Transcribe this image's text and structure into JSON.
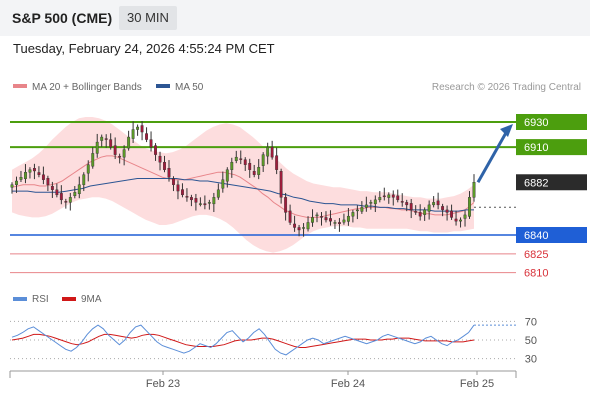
{
  "header": {
    "title": "S&P 500 (CME)",
    "timeframe": "30 MIN",
    "timestamp": "Tuesday, February 24, 2026 4:55:24 PM CET"
  },
  "legend": {
    "ma20": "MA 20 + Bollinger Bands",
    "ma50": "MA 50",
    "credit": "Research © 2026 Trading Central"
  },
  "rsi_legend": {
    "rsi": "RSI",
    "ma": "9MA"
  },
  "colors": {
    "green": "#4c9e0e",
    "blue": "#1f5fd6",
    "red": "#e8858a",
    "dark": "#2b2b2b",
    "candle_up": "#5c9a28",
    "candle_down": "#a01c3c",
    "bollinger": "#fdd7d8",
    "ma50": "#2c5593",
    "rsi": "#5b8ed8",
    "rsi_ma": "#d01818",
    "arrow": "#2f63a8"
  },
  "chart_data": [
    {
      "type": "candlestick",
      "ylim": [
        6800,
        6950
      ],
      "x_ticks": [
        "Feb 23",
        "Feb 24",
        "Feb 25"
      ],
      "last_price": 6882,
      "levels": [
        {
          "value": 6930,
          "label": "6930",
          "role": "resistance"
        },
        {
          "value": 6910,
          "label": "6910",
          "role": "resistance"
        },
        {
          "value": 6882,
          "label": "6882",
          "role": "last"
        },
        {
          "value": 6840,
          "label": "6840",
          "role": "support"
        },
        {
          "value": 6825,
          "label": "6825",
          "role": "support"
        },
        {
          "value": 6810,
          "label": "6810",
          "role": "support"
        }
      ],
      "close": [
        6880,
        6883,
        6886,
        6890,
        6892,
        6891,
        6888,
        6884,
        6880,
        6876,
        6872,
        6868,
        6866,
        6870,
        6874,
        6880,
        6888,
        6896,
        6905,
        6914,
        6918,
        6916,
        6910,
        6904,
        6902,
        6908,
        6918,
        6924,
        6926,
        6922,
        6916,
        6910,
        6904,
        6898,
        6892,
        6886,
        6880,
        6875,
        6872,
        6870,
        6868,
        6866,
        6865,
        6864,
        6866,
        6870,
        6876,
        6884,
        6892,
        6898,
        6902,
        6900,
        6896,
        6892,
        6888,
        6894,
        6904,
        6910,
        6902,
        6892,
        6870,
        6858,
        6850,
        6846,
        6844,
        6846,
        6850,
        6854,
        6856,
        6854,
        6852,
        6851,
        6850,
        6849,
        6852,
        6855,
        6858,
        6860,
        6862,
        6864,
        6866,
        6868,
        6870,
        6871,
        6872,
        6870,
        6868,
        6866,
        6864,
        6860,
        6858,
        6855,
        6860,
        6864,
        6866,
        6864,
        6860,
        6858,
        6854,
        6851,
        6852,
        6856,
        6870,
        6882
      ],
      "ma20": [
        6878,
        6879,
        6880,
        6880,
        6880,
        6879,
        6879,
        6880,
        6881,
        6883,
        6886,
        6889,
        6892,
        6895,
        6898,
        6900,
        6902,
        6903,
        6903,
        6902,
        6900,
        6898,
        6896,
        6894,
        6892,
        6890,
        6888,
        6886,
        6885,
        6884,
        6884,
        6884,
        6885,
        6886,
        6887,
        6888,
        6889,
        6890,
        6890,
        6889,
        6888,
        6886,
        6883,
        6880,
        6877,
        6873,
        6870,
        6866,
        6863,
        6860,
        6858,
        6856,
        6855,
        6854,
        6854,
        6854,
        6855,
        6856,
        6857,
        6858,
        6859,
        6860,
        6861,
        6861,
        6862,
        6862,
        6862,
        6862,
        6861,
        6861,
        6860,
        6860,
        6859,
        6858,
        6857,
        6857,
        6856,
        6856,
        6856,
        6857,
        6858,
        6859,
        6862,
        6866
      ],
      "bb_upper": [
        6892,
        6895,
        6898,
        6901,
        6905,
        6910,
        6916,
        6921,
        6926,
        6930,
        6933,
        6934,
        6934,
        6933,
        6931,
        6928,
        6924,
        6920,
        6916,
        6912,
        6909,
        6907,
        6906,
        6905,
        6906,
        6908,
        6911,
        6915,
        6919,
        6923,
        6926,
        6928,
        6929,
        6928,
        6926,
        6922,
        6918,
        6913,
        6908,
        6903,
        6898,
        6893,
        6889,
        6886,
        6883,
        6881,
        6880,
        6879,
        6878,
        6878,
        6877,
        6876,
        6875,
        6875,
        6874,
        6874,
        6874,
        6873,
        6872,
        6871,
        6870,
        6870,
        6869,
        6869,
        6869,
        6870,
        6871,
        6873,
        6876,
        6880
      ],
      "bb_lower": [
        6858,
        6856,
        6855,
        6854,
        6854,
        6855,
        6857,
        6860,
        6863,
        6866,
        6868,
        6869,
        6870,
        6870,
        6869,
        6867,
        6864,
        6861,
        6858,
        6855,
        6852,
        6850,
        6848,
        6848,
        6849,
        6851,
        6853,
        6855,
        6856,
        6856,
        6855,
        6853,
        6850,
        6846,
        6841,
        6836,
        6832,
        6829,
        6827,
        6826,
        6827,
        6829,
        6832,
        6836,
        6840,
        6843,
        6845,
        6846,
        6847,
        6847,
        6847,
        6846,
        6846,
        6845,
        6845,
        6845,
        6845,
        6845,
        6845,
        6845,
        6844,
        6843,
        6843,
        6842,
        6842,
        6842,
        6843,
        6843,
        6844,
        6845
      ],
      "ma50": [
        6875,
        6875,
        6875,
        6874,
        6874,
        6874,
        6874,
        6875,
        6876,
        6877,
        6879,
        6880,
        6881,
        6882,
        6883,
        6884,
        6885,
        6885,
        6885,
        6885,
        6885,
        6885,
        6884,
        6884,
        6883,
        6883,
        6882,
        6881,
        6880,
        6879,
        6878,
        6877,
        6876,
        6875,
        6873,
        6872,
        6870,
        6869,
        6867,
        6866,
        6865,
        6865,
        6864,
        6864,
        6864,
        6863,
        6863,
        6862,
        6862,
        6861,
        6861,
        6860,
        6860,
        6860,
        6859,
        6859,
        6859,
        6859,
        6860,
        6860
      ]
    },
    {
      "type": "line",
      "name": "RSI",
      "ylim": [
        20,
        80
      ],
      "y_ticks": [
        30,
        50,
        70
      ],
      "rsi": [
        53,
        55,
        58,
        62,
        64,
        60,
        56,
        52,
        48,
        44,
        40,
        38,
        42,
        48,
        56,
        62,
        66,
        62,
        55,
        50,
        45,
        50,
        58,
        64,
        66,
        60,
        54,
        48,
        44,
        42,
        40,
        38,
        36,
        38,
        42,
        46,
        44,
        42,
        46,
        52,
        58,
        60,
        54,
        48,
        52,
        58,
        62,
        56,
        48,
        40,
        36,
        34,
        38,
        42,
        46,
        50,
        52,
        50,
        46,
        48,
        50,
        52,
        54,
        52,
        50,
        48,
        46,
        48,
        50,
        54,
        56,
        54,
        52,
        50,
        48,
        46,
        48,
        52,
        54,
        50,
        46,
        44,
        48,
        50,
        54,
        58,
        66
      ],
      "rsi_ma": [
        50,
        51,
        52,
        54,
        56,
        56,
        55,
        54,
        52,
        50,
        48,
        46,
        45,
        46,
        48,
        51,
        54,
        56,
        56,
        55,
        54,
        53,
        52,
        53,
        55,
        56,
        56,
        55,
        53,
        51,
        49,
        47,
        45,
        44,
        43,
        43,
        43,
        43,
        44,
        45,
        47,
        49,
        50,
        50,
        50,
        51,
        52,
        52,
        51,
        49,
        47,
        45,
        43,
        42,
        42,
        43,
        44,
        45,
        46,
        47,
        48,
        49,
        50,
        51,
        51,
        51,
        50,
        50,
        50,
        51,
        51,
        52,
        52,
        52,
        51,
        50,
        49,
        49,
        49,
        49,
        49,
        48,
        48,
        48,
        49,
        50
      ]
    }
  ]
}
